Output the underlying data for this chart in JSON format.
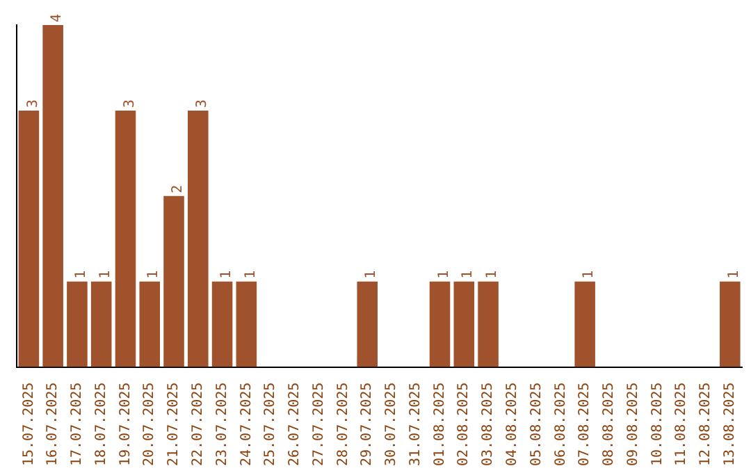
{
  "chart_data": {
    "type": "bar",
    "categories": [
      "15.07.2025",
      "16.07.2025",
      "17.07.2025",
      "18.07.2025",
      "19.07.2025",
      "20.07.2025",
      "21.07.2025",
      "22.07.2025",
      "23.07.2025",
      "24.07.2025",
      "25.07.2025",
      "26.07.2025",
      "27.07.2025",
      "28.07.2025",
      "29.07.2025",
      "30.07.2025",
      "31.07.2025",
      "01.08.2025",
      "02.08.2025",
      "03.08.2025",
      "04.08.2025",
      "05.08.2025",
      "06.08.2025",
      "07.08.2025",
      "08.08.2025",
      "09.08.2025",
      "10.08.2025",
      "11.08.2025",
      "12.08.2025",
      "13.08.2025"
    ],
    "values": [
      3,
      4,
      1,
      1,
      3,
      1,
      2,
      3,
      1,
      1,
      0,
      0,
      0,
      0,
      1,
      0,
      0,
      1,
      1,
      1,
      0,
      0,
      0,
      1,
      0,
      0,
      0,
      0,
      0,
      1
    ],
    "value_labels": [
      "3",
      "4",
      "1",
      "1",
      "3",
      "1",
      "2",
      "3",
      "1",
      "1",
      null,
      null,
      null,
      null,
      "1",
      null,
      null,
      "1",
      "1",
      "1",
      null,
      null,
      null,
      "1",
      null,
      null,
      null,
      null,
      null,
      "1"
    ],
    "color": "#a0522d"
  }
}
